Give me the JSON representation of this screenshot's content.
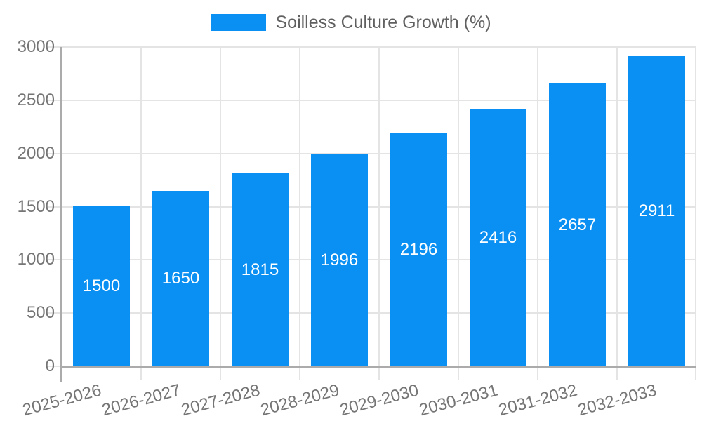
{
  "legend": {
    "label": "Soilless Culture Growth (%)"
  },
  "chart_data": {
    "type": "bar",
    "title": "Soilless Culture Growth (%)",
    "categories": [
      "2025-2026",
      "2026-2027",
      "2027-2028",
      "2028-2029",
      "2029-2030",
      "2030-2031",
      "2031-2032",
      "2032-2033"
    ],
    "values": [
      1500,
      1650,
      1815,
      1996,
      2196,
      2416,
      2657,
      2911
    ],
    "series": [
      {
        "name": "Soilless Culture Growth (%)",
        "values": [
          1500,
          1650,
          1815,
          1996,
          2196,
          2416,
          2657,
          2911
        ]
      }
    ],
    "xlabel": "",
    "ylabel": "",
    "ylim": [
      0,
      3000
    ],
    "yticks": [
      0,
      500,
      1000,
      1500,
      2000,
      2500,
      3000
    ],
    "grid": true,
    "legend_position": "top-center",
    "bar_labels": "inside-center",
    "colors": {
      "bar": "#0a90f2",
      "bar_label": "#ffffff",
      "grid": "#e4e4e4",
      "axis": "#ababab",
      "tick_label": "#757575",
      "legend_text": "#606060",
      "background": "#ffffff"
    }
  }
}
